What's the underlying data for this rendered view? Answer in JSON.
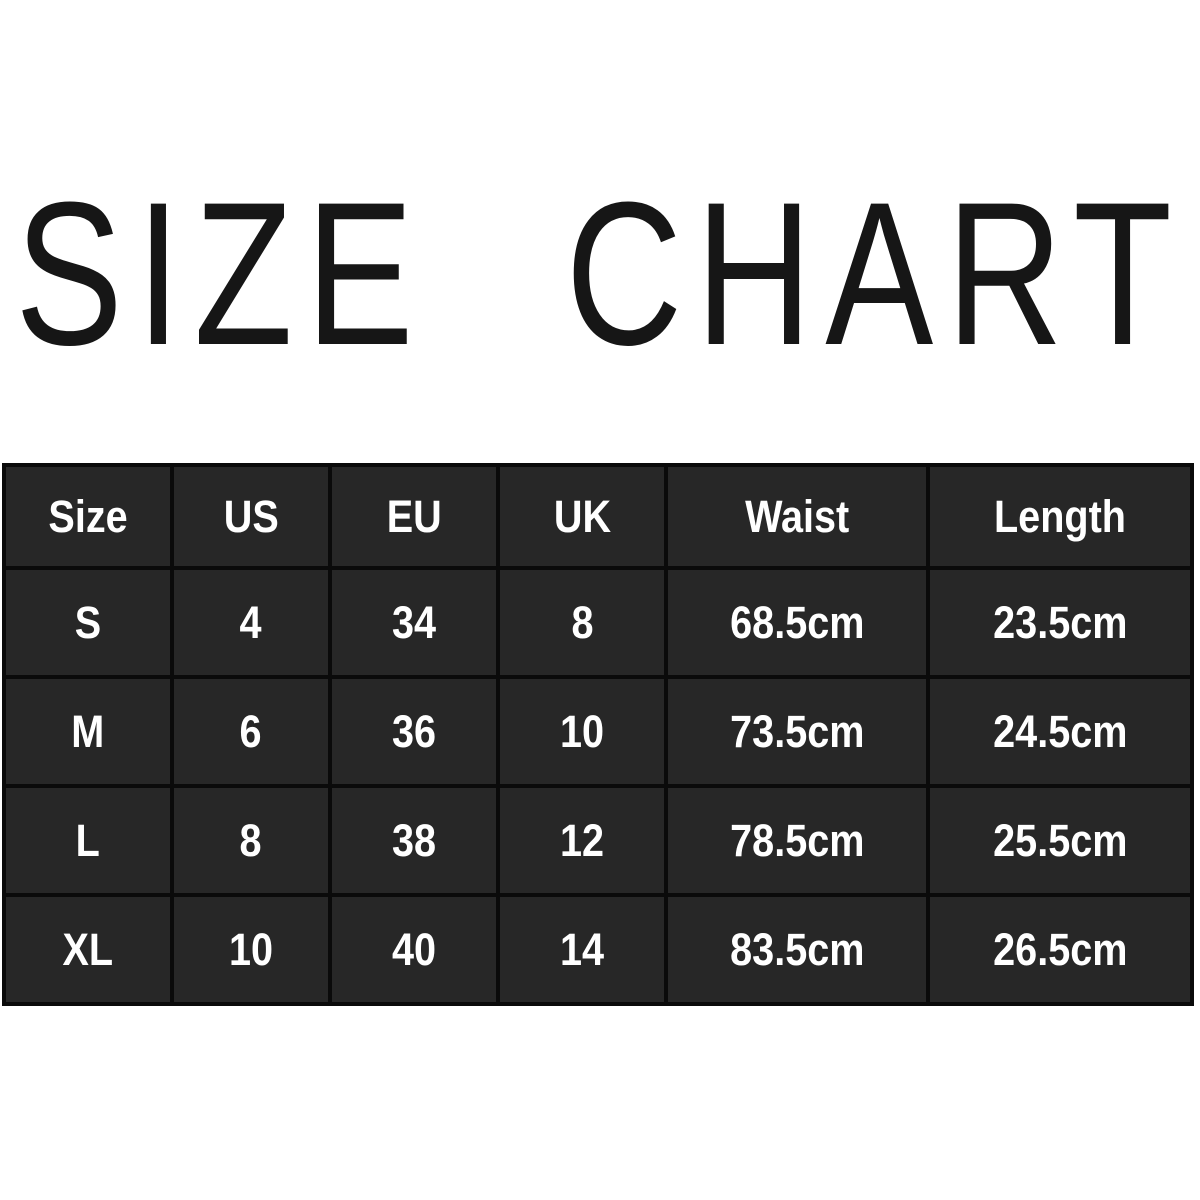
{
  "title": "SIZE CHART",
  "colors": {
    "page_background": "#ffffff",
    "title_text": "#161616",
    "table_cell_background": "#272727",
    "table_border": "#0a0a0a",
    "table_text": "#ffffff"
  },
  "chart_data": {
    "type": "table",
    "title": "SIZE CHART",
    "columns": [
      "Size",
      "US",
      "EU",
      "UK",
      "Waist",
      "Length"
    ],
    "rows": [
      [
        "S",
        "4",
        "34",
        "8",
        "68.5cm",
        "23.5cm"
      ],
      [
        "M",
        "6",
        "36",
        "10",
        "73.5cm",
        "24.5cm"
      ],
      [
        "L",
        "8",
        "38",
        "12",
        "78.5cm",
        "25.5cm"
      ],
      [
        "XL",
        "10",
        "40",
        "14",
        "83.5cm",
        "26.5cm"
      ]
    ],
    "layout_hints": {
      "header_row": true,
      "grid": true,
      "cell_style": "dark cells with white bold condensed text"
    }
  }
}
